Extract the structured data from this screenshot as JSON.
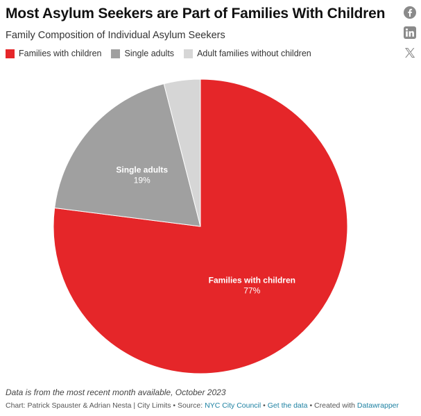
{
  "header": {
    "title": "Most Asylum Seekers are Part of Families With Children",
    "subtitle": "Family Composition of Individual Asylum Seekers"
  },
  "legend": [
    {
      "label": "Families with children",
      "color": "#e52629"
    },
    {
      "label": "Single adults",
      "color": "#a0a0a0"
    },
    {
      "label": "Adult families without children",
      "color": "#d6d6d6"
    }
  ],
  "social": [
    {
      "icon": "facebook-icon"
    },
    {
      "icon": "linkedin-icon"
    },
    {
      "icon": "x-icon"
    }
  ],
  "chart_data": {
    "type": "pie",
    "title": "Most Asylum Seekers are Part of Families With Children",
    "subtitle": "Family Composition of Individual Asylum Seekers",
    "legend_position": "top-left",
    "slices": [
      {
        "label": "Families with children",
        "value": 77,
        "value_label": "77%",
        "color": "#e52629",
        "show_label": true
      },
      {
        "label": "Single adults",
        "value": 19,
        "value_label": "19%",
        "color": "#a0a0a0",
        "show_label": true
      },
      {
        "label": "Adult families without children",
        "value": 4,
        "value_label": "",
        "color": "#d6d6d6",
        "show_label": false
      }
    ]
  },
  "footer": {
    "note": "Data is from the most recent month available, October 2023",
    "credit_prefix": "Chart: Patrick Spauster & Adrian Nesta | City Limits • Source: ",
    "source_link": "NYC City Council",
    "sep1": " • ",
    "get_data_link": "Get the data",
    "sep2": " • Created with ",
    "datawrapper_link": "Datawrapper"
  }
}
